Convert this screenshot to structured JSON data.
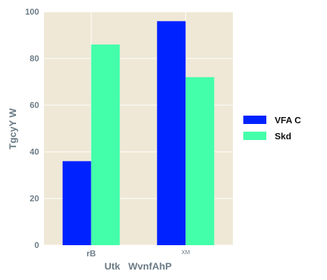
{
  "chart_data": {
    "type": "bar",
    "categories": [
      "rB",
      "XM"
    ],
    "series": [
      {
        "name": "VFA C",
        "values": [
          36,
          96
        ],
        "color": "#0022ff"
      },
      {
        "name": "Skd",
        "values": [
          86,
          72
        ],
        "color": "#44ffaa"
      }
    ],
    "xlabel": "Utk   WvnfAhP",
    "ylabel": "TgcyY W",
    "ylim": [
      0,
      100
    ],
    "yticks": [
      "0",
      "20",
      "40",
      "60",
      "80",
      "100"
    ],
    "grid": true,
    "legend_position": "right",
    "plot_background": "#efe8d6",
    "tick_color": "#6b7b86"
  }
}
